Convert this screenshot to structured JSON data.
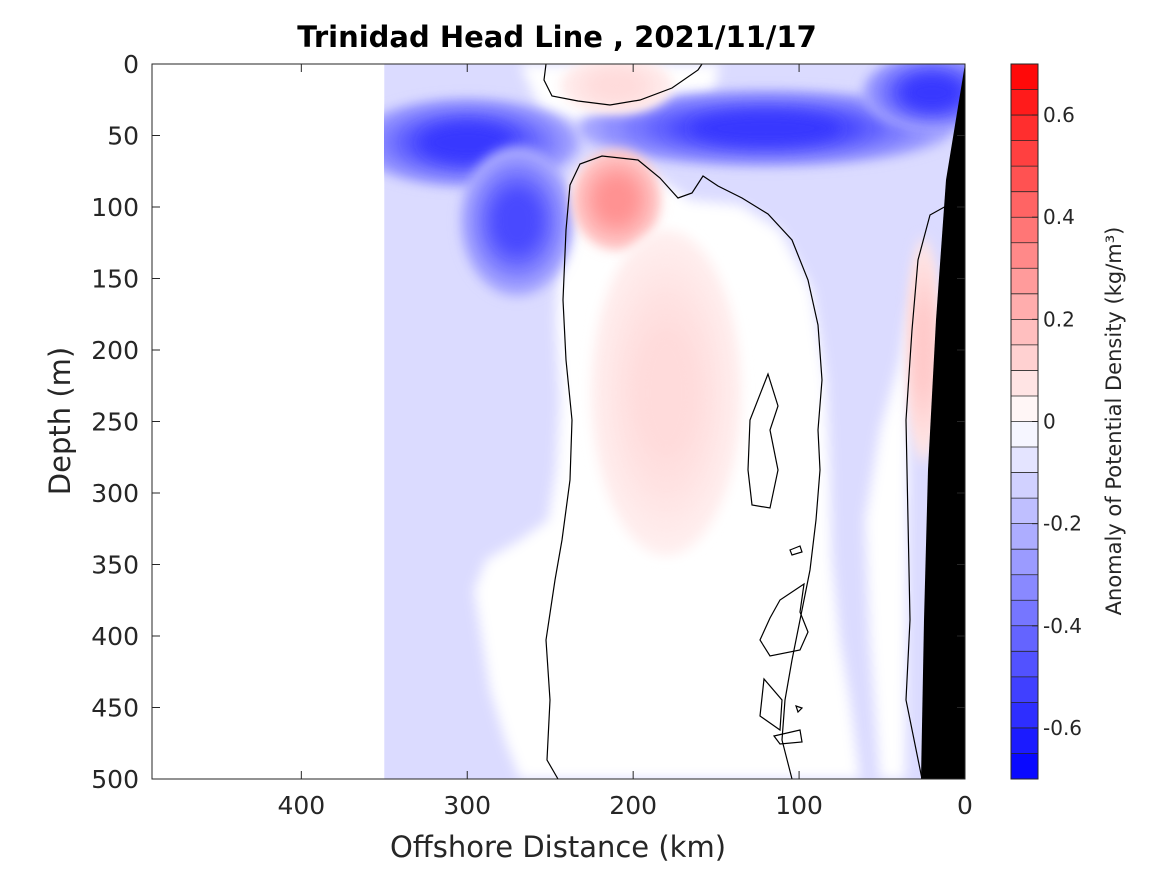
{
  "chart_data": {
    "type": "heatmap",
    "title": "Trinidad Head Line , 2021/11/17",
    "xlabel": "Offshore Distance (km)",
    "ylabel": "Depth (m)",
    "xlim": [
      490,
      0
    ],
    "x_reversed": true,
    "ylim": [
      0,
      500
    ],
    "y_reversed": true,
    "x_ticks": [
      400,
      300,
      200,
      100,
      0
    ],
    "x_tick_labels": [
      "400",
      "300",
      "200",
      "100",
      "0"
    ],
    "y_ticks": [
      0,
      50,
      100,
      150,
      200,
      250,
      300,
      350,
      400,
      450,
      500
    ],
    "y_tick_labels": [
      "0",
      "50",
      "100",
      "150",
      "200",
      "250",
      "300",
      "350",
      "400",
      "450",
      "500"
    ],
    "data_x_extent": [
      350,
      0
    ],
    "grid": false,
    "colorbar": {
      "label": "Anomaly of Potential Density (kg/m³)",
      "range": [
        -0.7,
        0.7
      ],
      "levels": 28,
      "colormap": "blue-white-red",
      "low_color": "#0000ff",
      "mid_color": "#ffffff",
      "high_color": "#ff0000",
      "ticks": [
        0.6,
        0.4,
        0.2,
        0,
        -0.2,
        -0.4,
        -0.6
      ],
      "tick_labels": [
        "0.6",
        "0.4",
        "0.2",
        "0",
        "-0.2",
        "-0.4",
        "-0.6"
      ]
    },
    "features": [
      {
        "kind": "negative_anomaly",
        "x": 300,
        "depth": 55,
        "value": -0.55
      },
      {
        "kind": "negative_anomaly",
        "x": 270,
        "depth": 110,
        "value": -0.5
      },
      {
        "kind": "negative_anomaly",
        "x": 120,
        "depth": 45,
        "value": -0.55
      },
      {
        "kind": "negative_anomaly",
        "x": 20,
        "depth": 20,
        "value": -0.55
      },
      {
        "kind": "positive_anomaly",
        "x": 210,
        "depth": 95,
        "value": 0.3
      },
      {
        "kind": "positive_anomaly",
        "x": 210,
        "depth": 15,
        "value": 0.1
      },
      {
        "kind": "positive_anomaly",
        "x": 180,
        "depth": 230,
        "value": 0.1
      },
      {
        "kind": "positive_anomaly",
        "x": 25,
        "depth": 200,
        "value": 0.15
      }
    ],
    "zero_contour": true,
    "bathymetry_fill": "#000000"
  }
}
